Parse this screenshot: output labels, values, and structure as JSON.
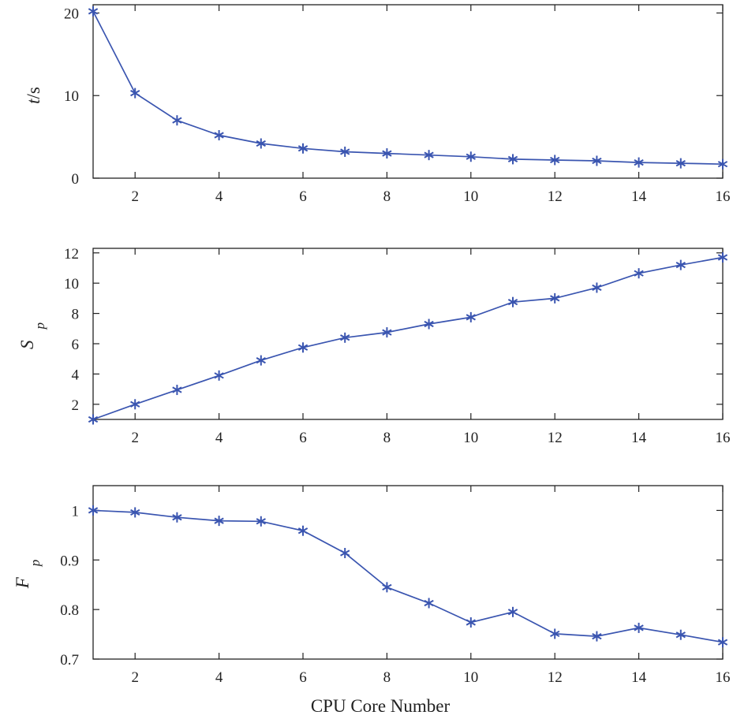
{
  "figure": {
    "xlabel": "CPU Core Number",
    "line_color": "#3a55b0",
    "axis_color": "#222222"
  },
  "chart_data": [
    {
      "type": "line",
      "title": "",
      "ylabel": {
        "main": "t",
        "rest": "/s",
        "main_italic": true
      },
      "xlabel": "",
      "xlim": [
        1,
        16
      ],
      "ylim": [
        0,
        21
      ],
      "xticks": [
        2,
        4,
        6,
        8,
        10,
        12,
        14,
        16
      ],
      "yticks": [
        0,
        10,
        20
      ],
      "ytick_labels": [
        "0",
        "10",
        "20"
      ],
      "grid": false,
      "marker": "asterisk",
      "series": [
        {
          "x": [
            1,
            2,
            3,
            4,
            5,
            6,
            7,
            8,
            9,
            10,
            11,
            12,
            13,
            14,
            15,
            16
          ],
          "y": [
            20.2,
            10.3,
            7.0,
            5.2,
            4.2,
            3.6,
            3.2,
            3.0,
            2.8,
            2.6,
            2.3,
            2.2,
            2.1,
            1.9,
            1.8,
            1.7
          ]
        }
      ]
    },
    {
      "type": "line",
      "title": "",
      "ylabel": {
        "main": "S",
        "sub": "p",
        "main_italic": true
      },
      "xlabel": "",
      "xlim": [
        1,
        16
      ],
      "ylim": [
        1,
        12.3
      ],
      "xticks": [
        2,
        4,
        6,
        8,
        10,
        12,
        14,
        16
      ],
      "yticks": [
        2,
        4,
        6,
        8,
        10,
        12
      ],
      "ytick_labels": [
        "2",
        "4",
        "6",
        "8",
        "10",
        "12"
      ],
      "grid": false,
      "marker": "asterisk",
      "series": [
        {
          "x": [
            1,
            2,
            3,
            4,
            5,
            6,
            7,
            8,
            9,
            10,
            11,
            12,
            13,
            14,
            15,
            16
          ],
          "y": [
            1.0,
            2.0,
            2.95,
            3.9,
            4.9,
            5.75,
            6.4,
            6.75,
            7.3,
            7.75,
            8.75,
            9.0,
            9.7,
            10.65,
            11.2,
            11.7
          ]
        }
      ]
    },
    {
      "type": "line",
      "title": "",
      "ylabel": {
        "main": "F",
        "sub": "p",
        "main_italic": true
      },
      "xlabel": "",
      "xlim": [
        1,
        16
      ],
      "ylim": [
        0.7,
        1.05
      ],
      "xticks": [
        2,
        4,
        6,
        8,
        10,
        12,
        14,
        16
      ],
      "yticks": [
        0.7,
        0.8,
        0.9,
        1.0
      ],
      "ytick_labels": [
        "0.7",
        "0.8",
        "0.9",
        "1"
      ],
      "grid": false,
      "marker": "asterisk",
      "series": [
        {
          "x": [
            1,
            2,
            3,
            4,
            5,
            6,
            7,
            8,
            9,
            10,
            11,
            12,
            13,
            14,
            15,
            16
          ],
          "y": [
            1.0,
            0.996,
            0.986,
            0.979,
            0.978,
            0.959,
            0.914,
            0.845,
            0.813,
            0.774,
            0.795,
            0.751,
            0.746,
            0.763,
            0.749,
            0.734
          ]
        }
      ]
    }
  ]
}
